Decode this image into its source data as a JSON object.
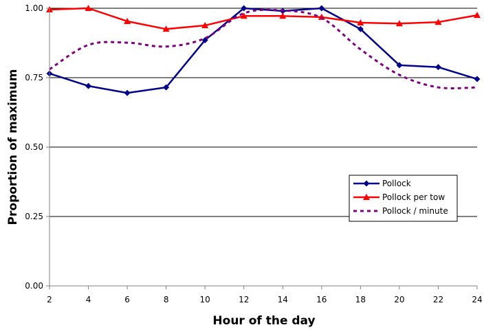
{
  "chart_data": {
    "type": "line",
    "title": "",
    "xlabel": "Hour of the day",
    "ylabel": "Proportion of maximum",
    "x": [
      2,
      4,
      6,
      8,
      10,
      12,
      14,
      16,
      18,
      20,
      22,
      24
    ],
    "x_tick_labels": [
      "2",
      "4",
      "6",
      "8",
      "10",
      "12",
      "14",
      "16",
      "18",
      "20",
      "22",
      "24"
    ],
    "y_tick_labels": [
      "0.00",
      "0.25",
      "0.50",
      "0.75",
      "1.00"
    ],
    "y_ticks": [
      0,
      0.25,
      0.5,
      0.75,
      1.0
    ],
    "xlim": [
      2,
      24
    ],
    "ylim": [
      0,
      1
    ],
    "grid": "horizontal",
    "legend_position": "right",
    "series": [
      {
        "name": "Pollock",
        "color": "#00008B",
        "style": "solid",
        "marker": "diamond",
        "values": [
          0.765,
          0.72,
          0.695,
          0.715,
          0.885,
          1.0,
          0.99,
          1.0,
          0.925,
          0.795,
          0.788,
          0.745
        ]
      },
      {
        "name": "Pollock per tow",
        "color": "#FF0000",
        "style": "solid",
        "marker": "triangle",
        "values": [
          0.995,
          1.0,
          0.953,
          0.925,
          0.938,
          0.972,
          0.972,
          0.968,
          0.948,
          0.945,
          0.95,
          0.975
        ]
      },
      {
        "name": "Pollock / minute",
        "color": "#800080",
        "style": "dashed",
        "marker": "none",
        "values": [
          0.78,
          0.868,
          0.876,
          0.862,
          0.892,
          0.982,
          0.992,
          0.965,
          0.852,
          0.76,
          0.715,
          0.715
        ]
      }
    ]
  }
}
